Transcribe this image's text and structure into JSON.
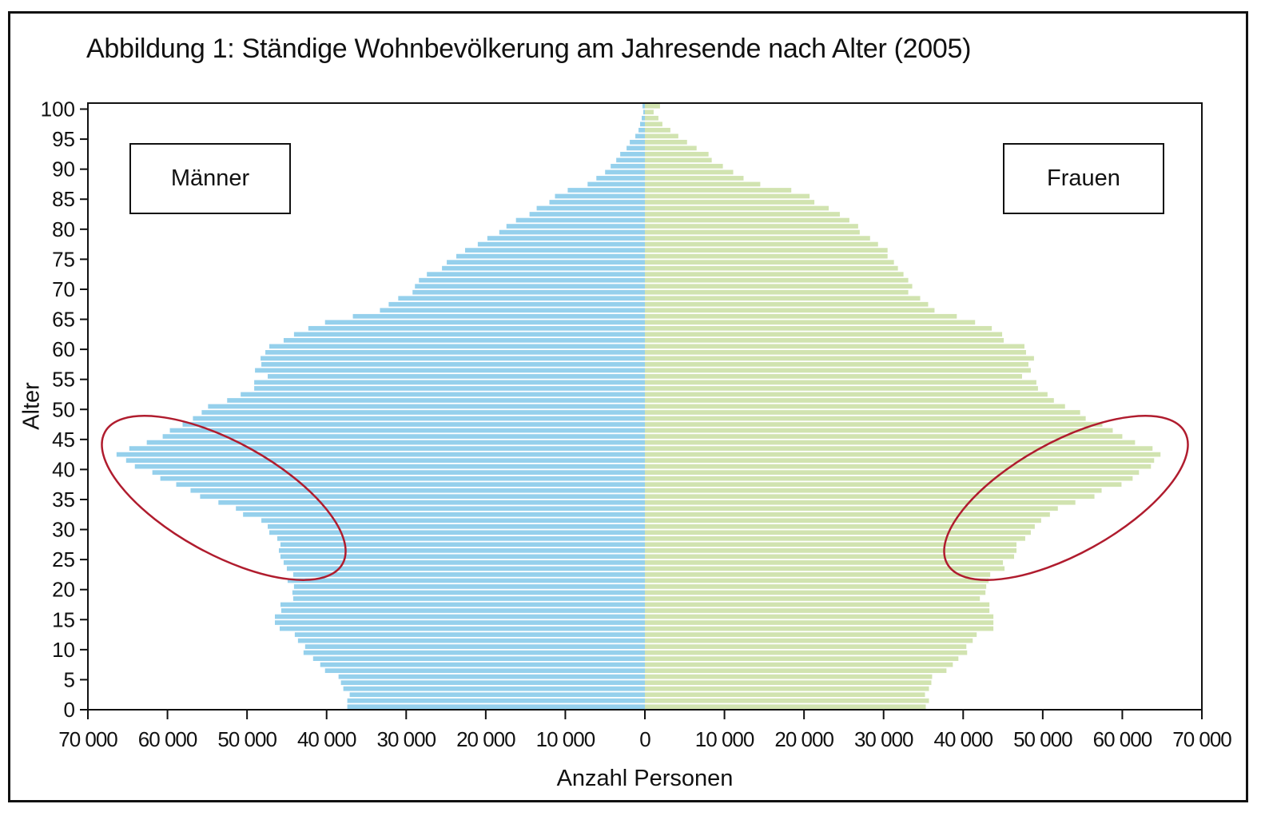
{
  "figure": {
    "title": "Abbildung 1: Ständige Wohnbevölkerung am Jahresende nach Alter (2005)",
    "legend_male": "Männer",
    "legend_female": "Frauen",
    "xlabel": "Anzahl Personen",
    "ylabel": "Alter"
  },
  "colors": {
    "male": "#95d0ec",
    "female": "#d1e3b0",
    "highlight": "#b01c2e",
    "axis": "#111111"
  },
  "chart_data": {
    "type": "bar",
    "orientation": "horizontal-population-pyramid",
    "title": "Abbildung 1: Ständige Wohnbevölkerung am Jahresende nach Alter (2005)",
    "xlabel": "Anzahl Personen",
    "ylabel": "Alter",
    "xlim": [
      -70000,
      70000
    ],
    "ylim": [
      0,
      100
    ],
    "xticks": [
      -70000,
      -60000,
      -50000,
      -40000,
      -30000,
      -20000,
      -10000,
      0,
      10000,
      20000,
      30000,
      40000,
      50000,
      60000,
      70000
    ],
    "xtick_labels": [
      "70 000",
      "60 000",
      "50 000",
      "40 000",
      "30 000",
      "20 000",
      "10 000",
      "0",
      "10 000",
      "20 000",
      "30 000",
      "40 000",
      "50 000",
      "60 000",
      "70 000"
    ],
    "yticks": [
      0,
      5,
      10,
      15,
      20,
      25,
      30,
      35,
      40,
      45,
      50,
      55,
      60,
      65,
      70,
      75,
      80,
      85,
      90,
      95,
      100
    ],
    "grid": false,
    "legend": [
      "Männer (left)",
      "Frauen (right)"
    ],
    "annotations": [
      {
        "type": "ellipse",
        "side": "Männer",
        "ages": "approx. 23–46",
        "note": "red ellipse highlighting baby-boom cohort bulge"
      },
      {
        "type": "ellipse",
        "side": "Frauen",
        "ages": "approx. 23–46",
        "note": "red ellipse highlighting baby-boom cohort bulge"
      }
    ],
    "categories": [
      0,
      1,
      2,
      3,
      4,
      5,
      6,
      7,
      8,
      9,
      10,
      11,
      12,
      13,
      14,
      15,
      16,
      17,
      18,
      19,
      20,
      21,
      22,
      23,
      24,
      25,
      26,
      27,
      28,
      29,
      30,
      31,
      32,
      33,
      34,
      35,
      36,
      37,
      38,
      39,
      40,
      41,
      42,
      43,
      44,
      45,
      46,
      47,
      48,
      49,
      50,
      51,
      52,
      53,
      54,
      55,
      56,
      57,
      58,
      59,
      60,
      61,
      62,
      63,
      64,
      65,
      66,
      67,
      68,
      69,
      70,
      71,
      72,
      73,
      74,
      75,
      76,
      77,
      78,
      79,
      80,
      81,
      82,
      83,
      84,
      85,
      86,
      87,
      88,
      89,
      90,
      91,
      92,
      93,
      94,
      95,
      96,
      97,
      98,
      99,
      100
    ],
    "series": [
      {
        "name": "Männer",
        "side": "left",
        "values": [
          37400,
          37400,
          37100,
          37900,
          38200,
          38500,
          40200,
          40800,
          41700,
          42900,
          42700,
          43600,
          44000,
          45900,
          46500,
          46500,
          45700,
          45800,
          44200,
          44300,
          44100,
          44900,
          44200,
          45000,
          45400,
          45800,
          46000,
          45800,
          46200,
          47200,
          47400,
          48200,
          50500,
          51400,
          53600,
          55900,
          57100,
          58900,
          60900,
          61900,
          64100,
          65200,
          66400,
          64800,
          62600,
          60600,
          59700,
          58100,
          56800,
          55700,
          54900,
          52500,
          50800,
          49100,
          49100,
          47400,
          49000,
          48200,
          48300,
          47700,
          47200,
          45400,
          44100,
          42300,
          40200,
          36700,
          33300,
          32200,
          31000,
          29200,
          28900,
          28400,
          27400,
          25500,
          24900,
          23700,
          22600,
          21000,
          19800,
          18300,
          17400,
          16200,
          14500,
          13600,
          12000,
          11300,
          9700,
          7200,
          6100,
          5000,
          4300,
          3600,
          3100,
          2300,
          1900,
          1200,
          800,
          600,
          400,
          200,
          300
        ]
      },
      {
        "name": "Frauen",
        "side": "right",
        "values": [
          35300,
          35700,
          35200,
          35700,
          36000,
          36100,
          37900,
          38700,
          39400,
          40500,
          40400,
          41200,
          41700,
          43800,
          43800,
          43800,
          43300,
          43300,
          42100,
          42800,
          42900,
          43200,
          43400,
          45200,
          45000,
          46400,
          46700,
          46700,
          47800,
          48500,
          49000,
          49800,
          50900,
          51900,
          54100,
          56500,
          57400,
          59900,
          61300,
          62100,
          63600,
          64000,
          64800,
          63800,
          61600,
          60000,
          58800,
          57500,
          55400,
          54700,
          52800,
          51400,
          50600,
          49400,
          49200,
          47400,
          48500,
          48200,
          48900,
          47900,
          47700,
          45100,
          44900,
          43600,
          41500,
          39200,
          36400,
          35600,
          34600,
          33100,
          33600,
          33100,
          32500,
          31800,
          31300,
          30500,
          30500,
          29300,
          28300,
          27000,
          26800,
          25700,
          24500,
          23100,
          21300,
          20700,
          18400,
          14500,
          12400,
          11100,
          9800,
          8400,
          8000,
          6500,
          5300,
          4200,
          3200,
          2200,
          1700,
          1100,
          1900
        ]
      }
    ]
  }
}
